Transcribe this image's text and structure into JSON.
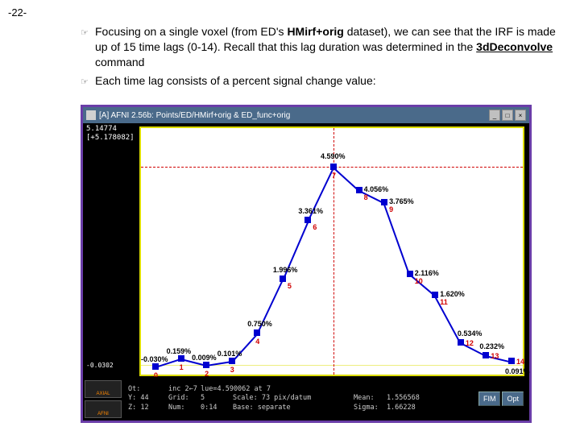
{
  "page_label": "-22-",
  "bullets": [
    {
      "pre": "Focusing on a single voxel (from ED's ",
      "bold1": "HMirf+orig",
      "mid": " dataset), we can see that the IRF is made up of 15 time lags (0-14).  Recall that this lag duration was determined in the ",
      "bold2": "3dDeconvolve",
      "post": " command"
    },
    {
      "pre": "Each time lag consists of a percent signal change value:"
    }
  ],
  "window": {
    "title": "[A] AFNI 2.56b: Points/ED/HMirf+orig & ED_func+orig",
    "readout_line1": "5.14774",
    "readout_line2": "[+5.178082]",
    "yaxis_bottom": "-0.0302",
    "stats": {
      "row1": [
        "Ot:",
        "inc 2←7",
        "lue=4.590062 at 7",
        "",
        ""
      ],
      "row2": [
        "Y: 44",
        "Grid:",
        "5",
        "Scale: 73 pix/datum",
        "Mean:   1.556568"
      ],
      "row3": [
        "Z: 12",
        "Num:",
        "0:14",
        "Base: separate",
        "Sigma:  1.66228"
      ]
    },
    "thumb1": "AXIAL",
    "thumb2": "AFNI",
    "btn_fim": "FIM",
    "btn_opt": "Opt"
  },
  "chart": {
    "type": "line-scatter",
    "background": "#ffffff",
    "frame_color": "#dcdc00",
    "line_color": "#0000d0",
    "marker_color": "#0000d0",
    "marker_shape": "square",
    "marker_size": 8,
    "label_color": "#000000",
    "index_color": "#d00000",
    "crosshair_color": "#d00000",
    "label_fontsize": 9,
    "xrange": [
      0,
      14
    ],
    "yrange": [
      -0.0302,
      5.14774
    ],
    "x": [
      0,
      1,
      2,
      3,
      4,
      5,
      6,
      7,
      8,
      9,
      10,
      11,
      12,
      13,
      14
    ],
    "y": [
      -0.03,
      0.159,
      0.009,
      0.101,
      0.75,
      1.996,
      3.361,
      4.59,
      4.056,
      3.765,
      2.116,
      1.62,
      0.534,
      0.232,
      0.091
    ],
    "labels": [
      "-0.030%",
      "0.159%",
      "0.009%",
      "0.101%",
      "0.750%",
      "1.996%",
      "3.361%",
      "4.590%",
      "4.056%",
      "3.765%",
      "2.116%",
      "1.620%",
      "0.534%",
      "0.232%",
      "0.091%"
    ],
    "highlight_index": 7
  }
}
